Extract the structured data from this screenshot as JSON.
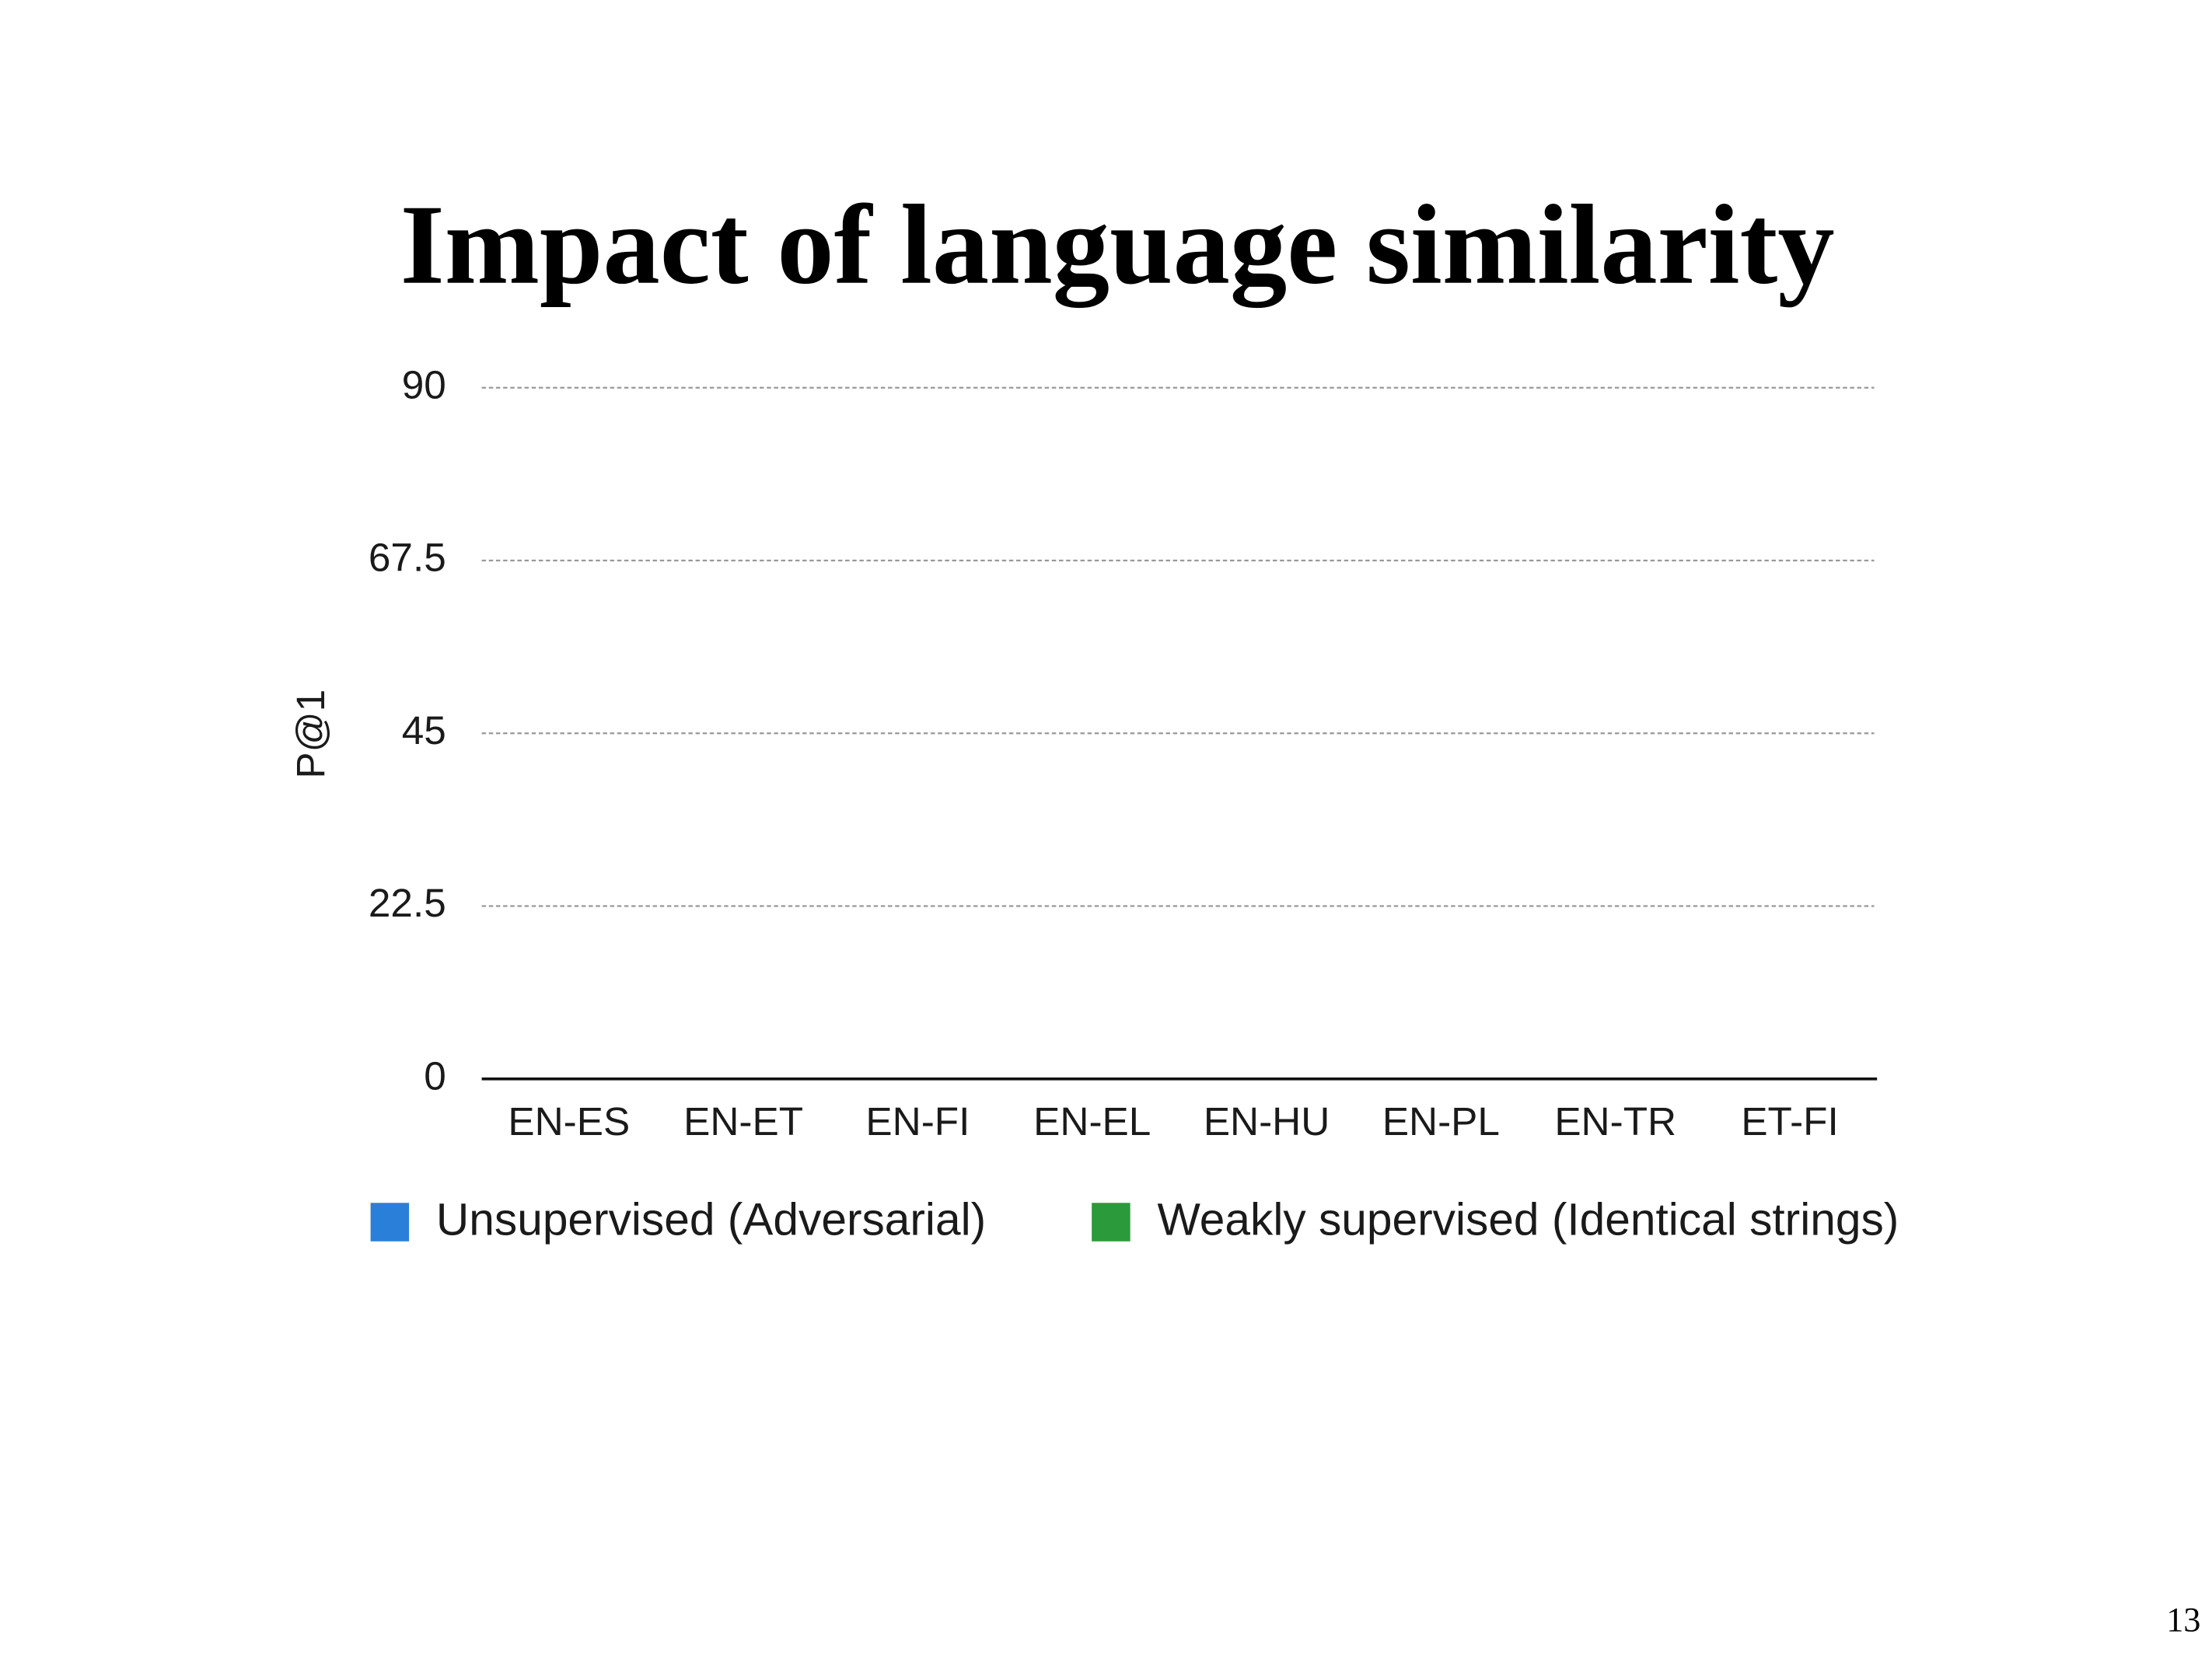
{
  "chart_data": {
    "type": "bar",
    "title": "Impact of language similarity",
    "y_label": "P@1",
    "categories": [
      "EN-ES",
      "EN-ET",
      "EN-FI",
      "EN-EL",
      "EN-HU",
      "EN-PL",
      "EN-TR",
      "ET-FI"
    ],
    "series": [
      {
        "name": "Unsupervised (Adversarial)",
        "color": "#2a7fd8",
        "values": [
          null,
          null,
          null,
          null,
          null,
          null,
          null,
          null
        ]
      },
      {
        "name": "Weakly supervised (Identical strings)",
        "color": "#2b9a3a",
        "values": [
          null,
          null,
          null,
          null,
          null,
          null,
          null,
          null
        ]
      }
    ],
    "ylim": [
      0,
      90
    ],
    "yticks": [
      0,
      22.5,
      45,
      67.5,
      90
    ],
    "grid": true,
    "legend": "bottom"
  },
  "slide_number": "13"
}
